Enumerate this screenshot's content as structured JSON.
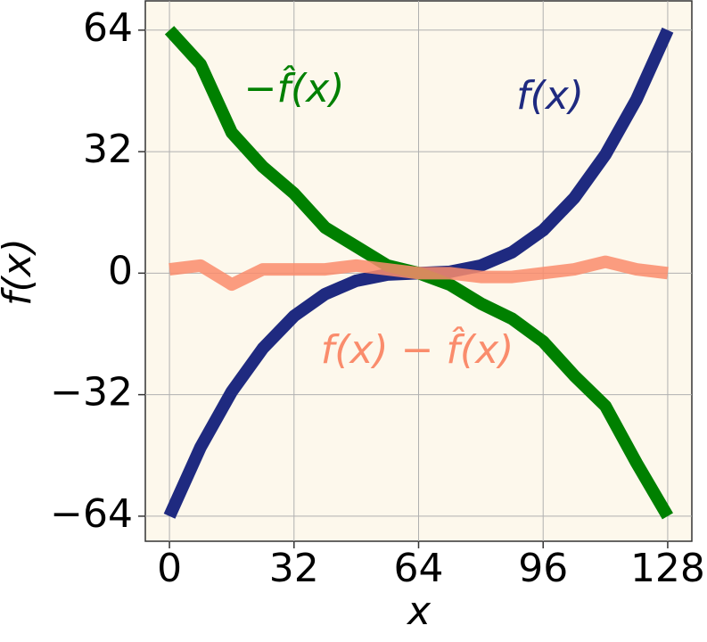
{
  "chart_data": {
    "type": "line",
    "xlabel": "x",
    "ylabel": "f(x)",
    "x": [
      0,
      8,
      16,
      24,
      32,
      40,
      48,
      56,
      64,
      72,
      80,
      88,
      96,
      104,
      112,
      120,
      128
    ],
    "series": [
      {
        "name": "f(x)",
        "color": "#1f2a80",
        "values": [
          -64,
          -45.8,
          -31.2,
          -19.8,
          -11.3,
          -5.5,
          -2,
          -0.35,
          0,
          0.35,
          2,
          5.5,
          11.3,
          19.8,
          31.2,
          45.8,
          64
        ]
      },
      {
        "name": "−f̂(x)",
        "color": "#008000",
        "values": [
          64,
          55,
          37,
          28,
          21,
          12,
          7,
          2,
          0,
          -3,
          -8,
          -12,
          -18,
          -27,
          -35,
          -50,
          -64
        ]
      },
      {
        "name": "f(x) − f̂(x)",
        "color": "#fa8c6c",
        "values": [
          1,
          2,
          -3,
          1,
          1,
          1,
          2,
          1,
          0,
          0,
          -1,
          -1,
          0,
          1,
          3,
          1,
          0
        ]
      }
    ],
    "xlim": [
      -6.2,
      134.2
    ],
    "ylim": [
      -70.6,
      71.7
    ],
    "xticks": [
      0,
      32,
      64,
      96,
      128
    ],
    "yticks": [
      {
        "value": -64,
        "label": "−64"
      },
      {
        "value": -32,
        "label": "−32"
      },
      0,
      32,
      64
    ],
    "grid": true
  }
}
